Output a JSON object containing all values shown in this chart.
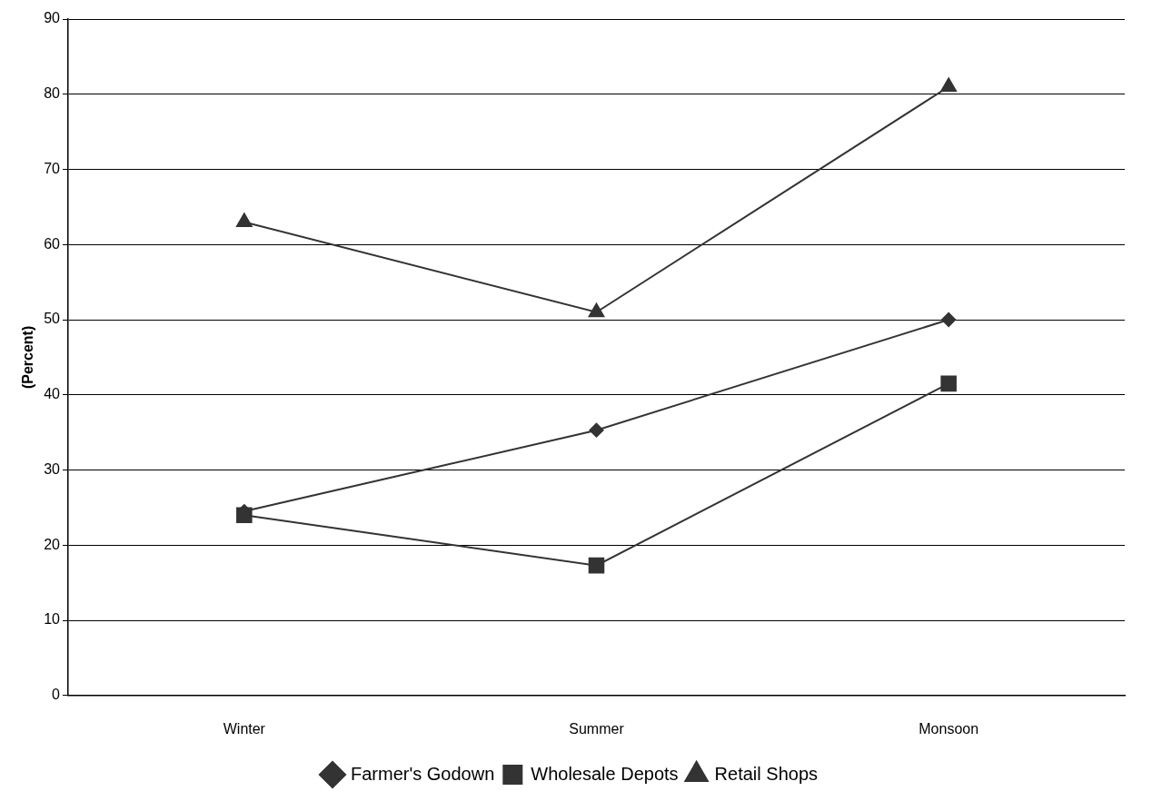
{
  "chart_data": {
    "type": "line",
    "ylabel": "(Percent)",
    "categories": [
      "Winter",
      "Summer",
      "Monsoon"
    ],
    "series": [
      {
        "name": "Farmer's Godown",
        "color": "#333333",
        "marker": "diamond",
        "values": [
          24.5,
          35.3,
          50
        ]
      },
      {
        "name": "Wholesale Depots",
        "color": "#333333",
        "marker": "square",
        "values": [
          24,
          17.3,
          41.5
        ]
      },
      {
        "name": "Retail Shops",
        "color": "#333333",
        "marker": "triangle",
        "values": [
          63,
          51,
          81
        ]
      }
    ],
    "ylim": [
      0,
      90
    ],
    "yticks": [
      0,
      10,
      20,
      30,
      40,
      50,
      60,
      70,
      80,
      90
    ],
    "grid": "y",
    "legend": "bottom"
  }
}
